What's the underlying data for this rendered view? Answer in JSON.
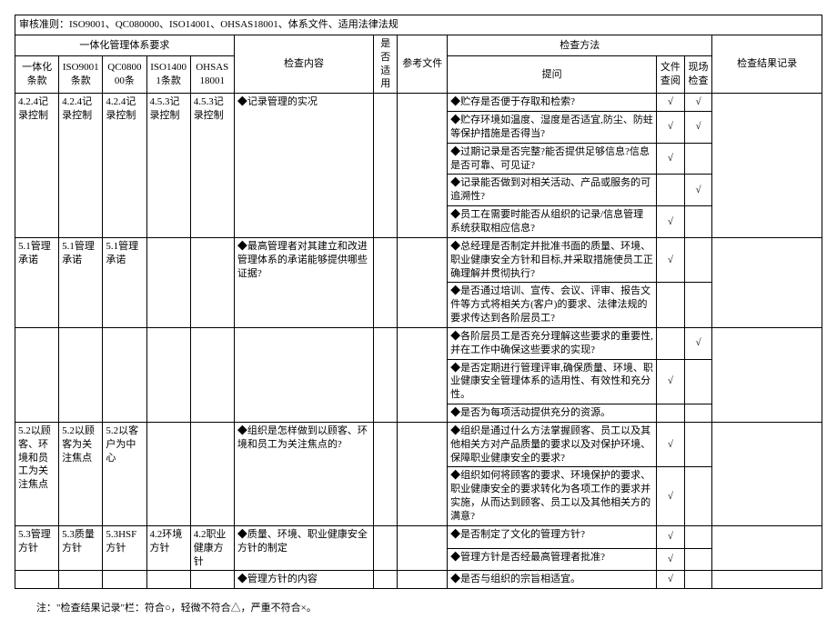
{
  "title": "审核准则：ISO9001、QC080000、ISO14001、OHSAS18001、体系文件、适用法律法规",
  "header": {
    "group1": "一体化管理体系要求",
    "col_yth": "一体化条款",
    "col_iso9001": "ISO9001条款",
    "col_qc080": "QC080000条",
    "col_iso14001": "ISO14001条款",
    "col_ohsas": "OHSAS18001",
    "col_content": "检查内容",
    "col_apply": "是否适用",
    "col_ref": "参考文件",
    "group2": "检查方法",
    "col_question": "提问",
    "col_file": "文件查阅",
    "col_site": "现场检查",
    "col_result": "检查结果记录"
  },
  "rows": [
    {
      "yth": "4.2.4记录控制",
      "iso9001": "4.2.4记录控制",
      "qc080": "4.2.4记录控制",
      "iso14001": "4.5.3记录控制",
      "ohsas": "4.5.3记录控制",
      "content": "◆记录管理的实况",
      "questions": [
        "◆贮存是否便于存取和检索?",
        "◆贮存环境如温度、湿度是否适宜,防尘、防蛀等保护措施是否得当?",
        "◆过期记录是否完整?能否提供足够信息?信息是否可靠、可见证?",
        "◆记录能否做到对相关活动、产品或服务的可追溯性?",
        "◆员工在需要时能否从组织的记录/信息管理系统获取相应信息?"
      ],
      "file": [
        "√",
        "√",
        "√",
        "",
        "√"
      ],
      "site": [
        "√",
        "√",
        "",
        "√",
        ""
      ]
    },
    {
      "yth": "5.1管理承诺",
      "iso9001": "5.1管理承诺",
      "qc080": "5.1管理承诺",
      "iso14001": "",
      "ohsas": "",
      "content": "◆最高管理者对其建立和改进管理体系的承诺能够提供哪些证据?",
      "questions": [
        "◆总经理是否制定并批准书面的质量、环境、职业健康安全方针和目标,并采取措施使员工正确理解并贯彻执行?",
        "◆是否通过培训、宣传、会议、评审、报告文件等方式将相关方(客户)的要求、法律法规的要求传达到各阶层员工?"
      ],
      "file": [
        "√",
        ""
      ],
      "site": [
        "",
        ""
      ]
    },
    {
      "yth": "",
      "iso9001": "",
      "qc080": "",
      "iso14001": "",
      "ohsas": "",
      "content": "",
      "questions": [
        "◆各阶层员工是否充分理解这些要求的重要性,并在工作中确保这些要求的实现?",
        "◆是否定期进行管理评审,确保质量、环境、职业健康安全管理体系的适用性、有效性和充分性。",
        "◆是否为每项活动提供充分的资源。"
      ],
      "file": [
        "",
        "√",
        ""
      ],
      "site": [
        "√",
        "",
        ""
      ]
    },
    {
      "yth": "5.2以顾客、环境和员工为关注焦点",
      "iso9001": "5.2以顾客为关注焦点",
      "qc080": "5.2以客户为中心",
      "iso14001": "",
      "ohsas": "",
      "content": "◆组织是怎样做到以顾客、环境和员工为关注焦点的?",
      "questions": [
        "◆组织是通过什么方法掌握顾客、员工以及其他相关方对产品质量的要求以及对保护环境、保障职业健康安全的要求?",
        "◆组织如何将顾客的要求、环境保护的要求、职业健康安全的要求转化为各项工作的要求并实施，从而达到顾客、员工以及其他相关方的满意?"
      ],
      "file": [
        "√",
        "√"
      ],
      "site": [
        "",
        ""
      ]
    },
    {
      "yth": "5.3管理方针",
      "iso9001": "5.3质量方针",
      "qc080": "5.3HSF方针",
      "iso14001": "4.2环境方针",
      "ohsas": "4.2职业健康方针",
      "content": "◆质量、环境、职业健康安全方针的制定",
      "questions": [
        "◆是否制定了文化的管理方针?",
        "◆管理方针是否经最高管理者批准?"
      ],
      "file": [
        "√",
        "√"
      ],
      "site": [
        "",
        ""
      ]
    },
    {
      "yth": "",
      "iso9001": "",
      "qc080": "",
      "iso14001": "",
      "ohsas": "",
      "content": "◆管理方针的内容",
      "questions": [
        "◆是否与组织的宗旨相适宜。"
      ],
      "file": [
        "√"
      ],
      "site": [
        ""
      ]
    }
  ],
  "footnote": "注：\"检查结果记录\"栏：符合○，轻微不符合△，严重不符合×。"
}
